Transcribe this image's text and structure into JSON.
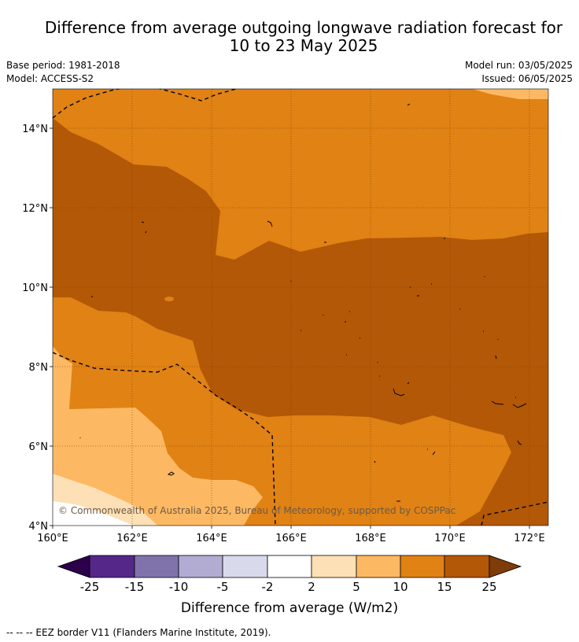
{
  "header": {
    "title_line1": "Difference from average outgoing longwave radiation forecast for",
    "title_line2": "10 to 23 May 2025",
    "base_period": "Base period: 1981-2018",
    "model": "Model: ACCESS-S2",
    "model_run": "Model run: 03/05/2025",
    "issued": "Issued: 06/05/2025"
  },
  "map": {
    "lat_labels": [
      "14°N",
      "12°N",
      "10°N",
      "8°N",
      "6°N",
      "4°N"
    ],
    "lon_labels": [
      "160°E",
      "162°E",
      "164°E",
      "166°E",
      "168°E",
      "170°E",
      "172°E"
    ],
    "copyright": "© Commonwealth of Australia 2025, Bureau of Meteorology, supported by COSPPac"
  },
  "colorbar": {
    "tick_labels": [
      "-25",
      "-15",
      "-10",
      "-5",
      "-2",
      "2",
      "5",
      "10",
      "15",
      "25"
    ],
    "title": "Difference from average (W/m2)",
    "colors": {
      "below": "#2d004b",
      "n25_15": "#542788",
      "n15_10": "#8073ac",
      "n10_5": "#b2abd2",
      "n5_2": "#d8daeb",
      "n2_2": "#ffffff",
      "p2_5": "#fee0b6",
      "p5_10": "#fdb863",
      "p10_15": "#e08214",
      "p15_25": "#b35806",
      "above": "#7f3b08"
    }
  },
  "footer": {
    "legend_text": "--  --  -- EEZ border V11 (Flanders Marine Institute, 2019)."
  }
}
